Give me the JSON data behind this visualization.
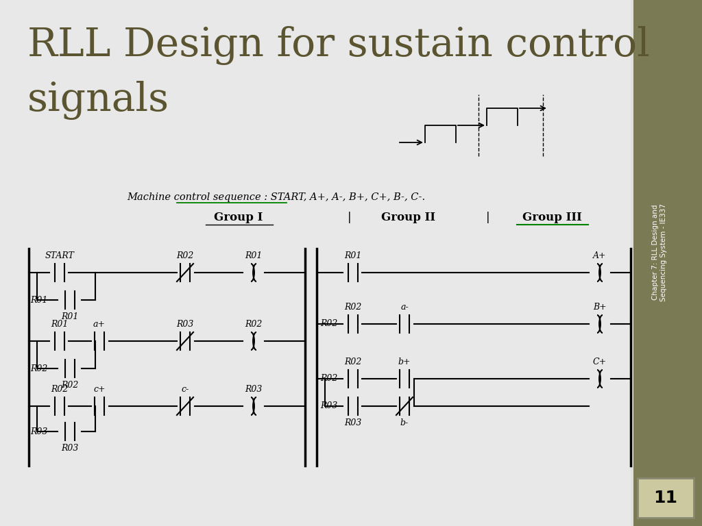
{
  "title_line1": "RLL Design for sustain control",
  "title_line2": "signals",
  "title_color": "#5a5430",
  "bg_color": "#e8e8e8",
  "sidebar_color": "#7a7a55",
  "sidebar_text": "Chapter 7: RLL Design and\nSequencing System - IE337",
  "page_number": "11",
  "sequence_label": "Machine control sequence : START, A+, A-, B+, C+, B-, C-.",
  "lw": 1.5
}
